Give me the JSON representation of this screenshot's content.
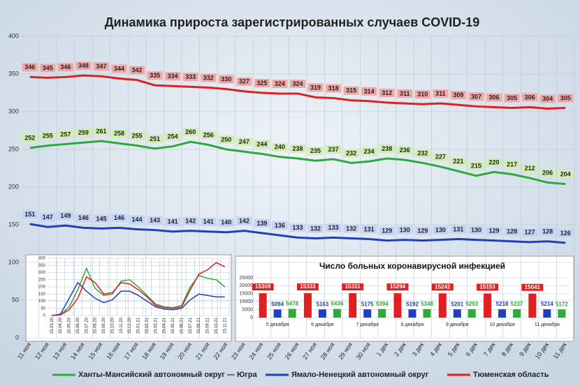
{
  "chart_data": [
    {
      "type": "line",
      "title": "Динамика прироста зарегистрированных случаев COVID-19",
      "categories": [
        "11 ноя",
        "12 ноя",
        "13 ноя",
        "14 ноя",
        "15 ноя",
        "16 ноя",
        "17 ноя",
        "18 ноя",
        "19 ноя",
        "20 ноя",
        "21 ноя",
        "22 ноя",
        "23 ноя",
        "24 ноя",
        "25 ноя",
        "26 ноя",
        "27 ноя",
        "28 ноя",
        "29 ноя",
        "30 ноя",
        "1 дек",
        "2 дек",
        "3 дек",
        "4 дек",
        "5 дек",
        "6 дек",
        "7 дек",
        "8 дек",
        "9 дек",
        "10 дек",
        "11 дек"
      ],
      "series": [
        {
          "name": "Ханты-Мансийский автономный округ — Югра",
          "color": "#2eaa3c",
          "values": [
            252,
            255,
            257,
            259,
            261,
            258,
            255,
            251,
            254,
            260,
            256,
            250,
            247,
            244,
            240,
            238,
            235,
            237,
            232,
            234,
            238,
            236,
            232,
            227,
            221,
            215,
            220,
            217,
            212,
            206,
            204
          ]
        },
        {
          "name": "Ямало-Ненецкий автономный округ",
          "color": "#1f3fbf",
          "values": [
            151,
            147,
            149,
            146,
            145,
            146,
            144,
            143,
            141,
            142,
            141,
            140,
            142,
            139,
            136,
            133,
            132,
            133,
            132,
            131,
            129,
            130,
            129,
            130,
            131,
            130,
            129,
            128,
            127,
            128,
            126
          ]
        },
        {
          "name": "Тюменская область",
          "color": "#e02020",
          "values": [
            346,
            345,
            346,
            348,
            347,
            344,
            342,
            335,
            334,
            333,
            332,
            330,
            327,
            325,
            324,
            324,
            319,
            318,
            315,
            314,
            312,
            311,
            310,
            311,
            309,
            307,
            306,
            305,
            306,
            304,
            305
          ]
        }
      ],
      "ylim": [
        0,
        400
      ],
      "yticks": [
        0,
        50,
        100,
        150,
        200,
        250,
        300,
        350,
        400
      ],
      "grid": true,
      "legend": "bottom"
    },
    {
      "type": "line",
      "categories": [
        "15.03.20",
        "15.04.20",
        "15.05.20",
        "15.06.20",
        "15.07.20",
        "15.08.20",
        "15.09.20",
        "15.10.20",
        "15.11.20",
        "15.12.20",
        "15.01.21",
        "15.02.21",
        "15.03.21",
        "15.04.21",
        "15.05.21",
        "15.06.21",
        "15.07.21",
        "15.08.21",
        "15.09.21",
        "15.10.21",
        "15.11.21"
      ],
      "series": [
        {
          "color": "#2eaa3c",
          "values": [
            0,
            5,
            60,
            180,
            330,
            190,
            140,
            150,
            240,
            250,
            200,
            140,
            80,
            60,
            55,
            70,
            200,
            280,
            260,
            250,
            200
          ]
        },
        {
          "color": "#1f3fbf",
          "values": [
            0,
            10,
            120,
            230,
            170,
            120,
            90,
            110,
            170,
            170,
            140,
            100,
            60,
            45,
            40,
            50,
            110,
            150,
            140,
            130,
            130
          ]
        },
        {
          "color": "#e02020",
          "values": [
            0,
            5,
            40,
            120,
            270,
            230,
            150,
            160,
            230,
            220,
            180,
            130,
            70,
            55,
            50,
            60,
            180,
            290,
            320,
            370,
            340
          ]
        }
      ],
      "ylim": [
        0,
        400
      ],
      "yticks": [
        0,
        50,
        100,
        150,
        200,
        250,
        300,
        350,
        400
      ],
      "grid": true
    },
    {
      "type": "bar",
      "title": "Число больных коронавирусной  инфекцией",
      "categories": [
        "5 декабря",
        "6 декабря",
        "7 декабря",
        "8 декабря",
        "9 декабря",
        "10 декабря",
        "11 декабря"
      ],
      "series": [
        {
          "color": "#e02020",
          "values": [
            15309,
            15333,
            15331,
            15294,
            15242,
            15153,
            15041
          ]
        },
        {
          "color": "#1f3fbf",
          "values": [
            5094,
            5163,
            5175,
            5192,
            5201,
            5218,
            5214
          ]
        },
        {
          "color": "#2eaa3c",
          "values": [
            5478,
            5436,
            5394,
            5348,
            5293,
            5237,
            5172
          ]
        }
      ],
      "ylim": [
        0,
        25000
      ],
      "yticks": [
        0,
        5000,
        10000,
        15000,
        20000,
        25000
      ],
      "grid": true
    }
  ]
}
